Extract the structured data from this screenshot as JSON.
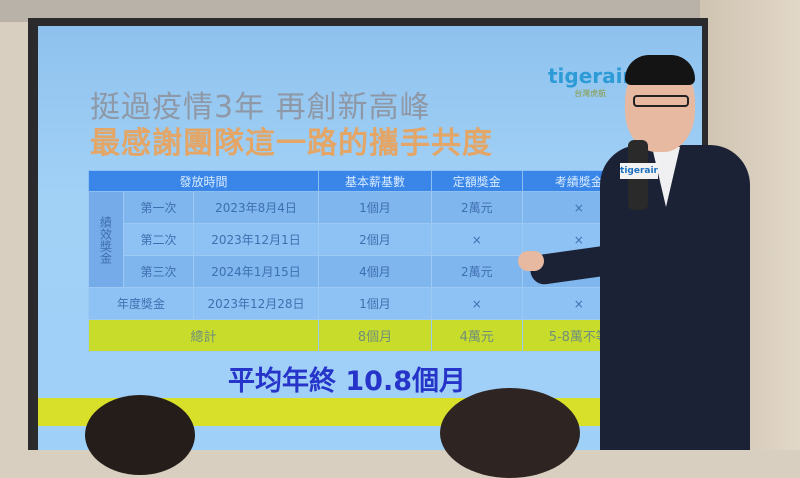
{
  "slide": {
    "title_line1": "挺過疫情3年 再創新高峰",
    "title_line2": "最感謝團隊這一路的攜手共度",
    "logo": "tigerair",
    "logo_sub": "台灣虎航",
    "table": {
      "headers": [
        "發放時間",
        "基本薪基數",
        "定額獎金",
        "考績獎金"
      ],
      "group_label": "績效獎金",
      "rows": [
        {
          "label": "第一次",
          "date": "2023年8月4日",
          "base": "1個月",
          "fixed": "2萬元",
          "merit": "×"
        },
        {
          "label": "第二次",
          "date": "2023年12月1日",
          "base": "2個月",
          "fixed": "×",
          "merit": "×"
        },
        {
          "label": "第三次",
          "date": "2024年1月15日",
          "base": "4個月",
          "fixed": "2萬元",
          "merit": "×"
        },
        {
          "label": "年度獎金",
          "date": "2023年12月28日",
          "base": "1個月",
          "fixed": "×",
          "merit": "×"
        }
      ],
      "total": {
        "label": "總計",
        "base": "8個月",
        "fixed": "4萬元",
        "merit": "5-8萬不等"
      }
    },
    "average": "平均年終 10.8個月"
  },
  "speaker": {
    "mic_label": "tigerair"
  },
  "colors": {
    "header": "#3a86e8",
    "total_row": "#c8dc2c",
    "average_text": "#2634c9",
    "title2": "#e3a667"
  }
}
